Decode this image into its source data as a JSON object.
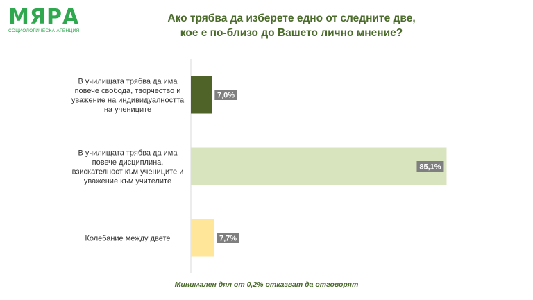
{
  "logo": {
    "name": "МЯРА",
    "subtitle": "СОЦИОЛОГИЧЕСКА АГЕНЦИЯ"
  },
  "title_lines": [
    "Ако трябва да изберете едно от следните две,",
    "кое е по-близо до Вашето лично мнение?"
  ],
  "footnote": "Минимален дял от 0,2% отказват да отговорят",
  "chart_data": {
    "type": "bar",
    "orientation": "horizontal",
    "title": "Ако трябва да изберете едно от следните две, кое е по-близо до Вашето лично мнение?",
    "categories": [
      [
        "В училищата трябва да има",
        "повече свобода, творчество и",
        "уважение на индивидуалността",
        "на учениците"
      ],
      [
        "В училищата трябва да има",
        "повече дисциплина,",
        "взискателност към учениците и",
        "уважение към учителите"
      ],
      [
        "Колебание между двете"
      ]
    ],
    "values": [
      7.0,
      85.1,
      7.7
    ],
    "value_labels": [
      "7,0%",
      "85,1%",
      "7,7%"
    ],
    "colors": [
      "#4f6228",
      "#d7e4bd",
      "#ffe699"
    ],
    "xlim": [
      0,
      100
    ],
    "grid": false,
    "legend": "none"
  }
}
